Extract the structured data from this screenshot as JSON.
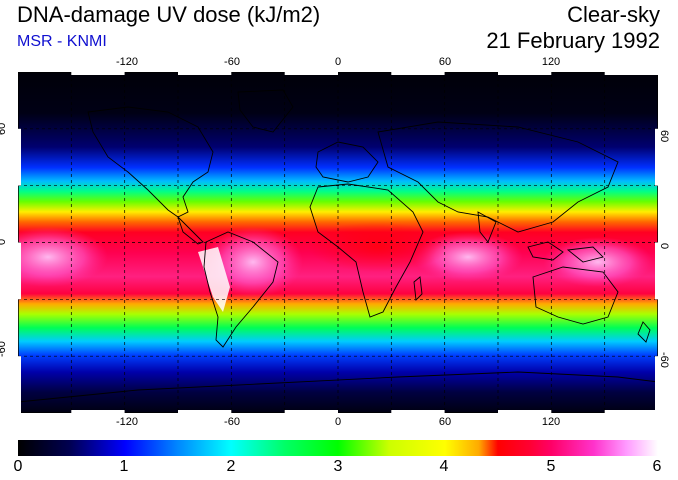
{
  "header": {
    "title": "DNA-damage UV dose (kJ/m2)",
    "subtitle": "MSR - KNMI",
    "mode": "Clear-sky",
    "date": "21 February 1992"
  },
  "map": {
    "lon_ticks": [
      "-120",
      "-60",
      "0",
      "60",
      "120"
    ],
    "lat_ticks": [
      "60",
      "0",
      "-60"
    ],
    "lon_range": [
      -180,
      180
    ],
    "lat_range": [
      -90,
      90
    ],
    "grid": "dashed, every 30 degrees"
  },
  "colorbar": {
    "labels": [
      "0",
      "1",
      "2",
      "3",
      "4",
      "5",
      "6"
    ],
    "range": [
      0,
      6
    ],
    "colors": [
      "#000000",
      "#0000ff",
      "#00ffff",
      "#00ff00",
      "#ffff00",
      "#ff0000",
      "#ff0066",
      "#ffffff"
    ]
  }
}
